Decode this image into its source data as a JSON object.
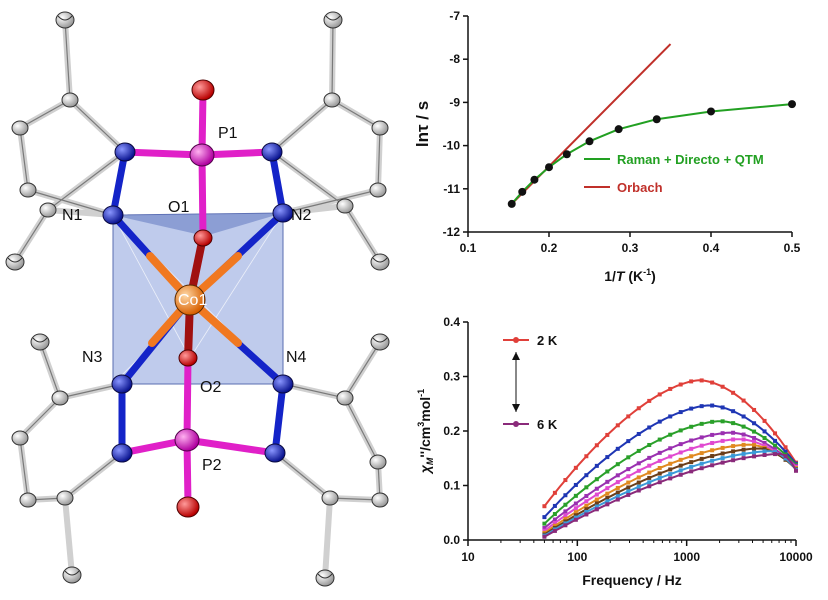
{
  "structure": {
    "atom_labels": [
      "P1",
      "O1",
      "N1",
      "N2",
      "Co1",
      "N3",
      "N4",
      "O2",
      "P2"
    ],
    "colors": {
      "cobalt": "#f07820",
      "nitrogen": "#1424c8",
      "phosphorus": "#e020c8",
      "oxygen": "#e01818",
      "carbon": "#c8c8c8",
      "polyhedron": "#8aa0dc"
    }
  },
  "chart_data": [
    {
      "type": "scatter",
      "xlabel_prefix": "1/",
      "xlabel_var": "T",
      "xlabel_unit": " (K",
      "xlabel_exp": "-1",
      "xlabel_close": ")",
      "ylabel": "lnτ / s",
      "xlim": [
        0.1,
        0.5
      ],
      "ylim": [
        -12,
        -7
      ],
      "x_ticks": [
        "0.1",
        "0.2",
        "0.3",
        "0.4",
        "0.5"
      ],
      "y_ticks": [
        "-12",
        "-11",
        "-10",
        "-9",
        "-8",
        "-7"
      ],
      "points": {
        "x": [
          0.154,
          0.167,
          0.182,
          0.2,
          0.222,
          0.25,
          0.286,
          0.333,
          0.4,
          0.5
        ],
        "y": [
          -11.35,
          -11.07,
          -10.79,
          -10.5,
          -10.2,
          -9.9,
          -9.62,
          -9.39,
          -9.21,
          -9.04
        ]
      },
      "fits": [
        {
          "name": "Raman + Directo + QTM",
          "color": "#22a022",
          "x": [
            0.154,
            0.167,
            0.182,
            0.2,
            0.222,
            0.25,
            0.286,
            0.333,
            0.4,
            0.5
          ],
          "y": [
            -11.35,
            -11.07,
            -10.79,
            -10.5,
            -10.2,
            -9.9,
            -9.62,
            -9.39,
            -9.21,
            -9.04
          ]
        },
        {
          "name": "Orbach",
          "color": "#c0302a",
          "x": [
            0.154,
            0.35
          ],
          "y": [
            -11.35,
            -7.65
          ]
        }
      ],
      "legend_position": "right"
    },
    {
      "type": "line",
      "xlabel": "Frequency / Hz",
      "ylabel_var": "χ",
      "ylabel_sub": "M",
      "ylabel_rest": "''/cm",
      "ylabel_exp": "3",
      "ylabel_rest2": "mol",
      "ylabel_exp2": "-1",
      "xscale": "log",
      "xlim": [
        10,
        10000
      ],
      "ylim": [
        0,
        0.4
      ],
      "x_ticks": [
        "10",
        "100",
        "1000",
        "10000"
      ],
      "y_ticks": [
        "0.0",
        "0.1",
        "0.2",
        "0.3",
        "0.4"
      ],
      "annotations": [
        "2 K",
        "6 K"
      ],
      "series": [
        {
          "name": "2 K",
          "color": "#e0403a",
          "peak_freq": 1300,
          "peak_value": 0.293,
          "high_value": 0.142,
          "low_value": 0.062
        },
        {
          "color": "#1f36b4",
          "peak_freq": 1600,
          "peak_value": 0.247,
          "high_value": 0.14,
          "low_value": 0.042
        },
        {
          "color": "#2aa02a",
          "peak_freq": 2000,
          "peak_value": 0.218,
          "high_value": 0.138,
          "low_value": 0.03
        },
        {
          "color": "#9a30b0",
          "peak_freq": 2500,
          "peak_value": 0.197,
          "high_value": 0.136,
          "low_value": 0.022
        },
        {
          "color": "#e04ad0",
          "peak_freq": 3000,
          "peak_value": 0.185,
          "high_value": 0.134,
          "low_value": 0.017
        },
        {
          "color": "#e08a20",
          "peak_freq": 3700,
          "peak_value": 0.175,
          "high_value": 0.132,
          "low_value": 0.013
        },
        {
          "color": "#6b3e1a",
          "peak_freq": 4600,
          "peak_value": 0.168,
          "high_value": 0.13,
          "low_value": 0.01
        },
        {
          "color": "#3a9ad8",
          "peak_freq": 5800,
          "peak_value": 0.163,
          "high_value": 0.129,
          "low_value": 0.008
        },
        {
          "name": "6 K",
          "color": "#8a2a7a",
          "peak_freq": 7200,
          "peak_value": 0.158,
          "high_value": 0.127,
          "low_value": 0.006
        }
      ]
    }
  ]
}
